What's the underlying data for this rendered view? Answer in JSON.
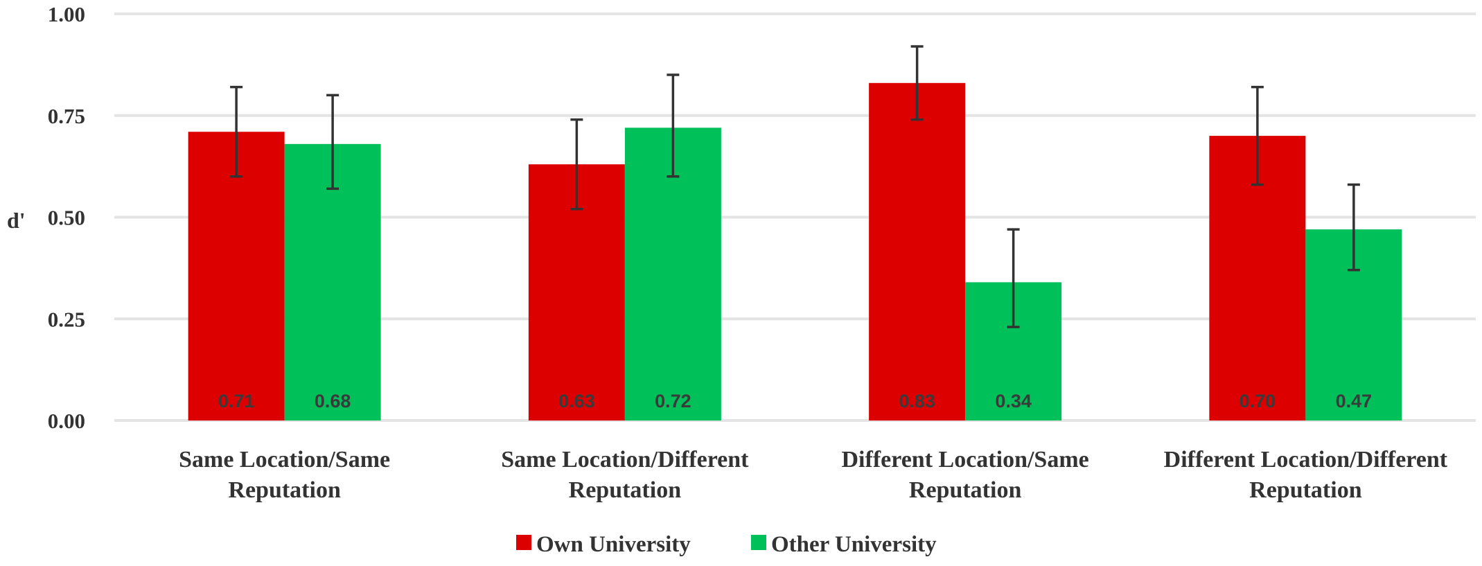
{
  "chart_data": {
    "type": "bar",
    "ylabel": "d'",
    "ylim": [
      0,
      1
    ],
    "yticks": [
      "0.00",
      "0.25",
      "0.50",
      "0.75",
      "1.00"
    ],
    "grid": true,
    "legend_position": "bottom",
    "categories": [
      [
        "Same Location/Same",
        "Reputation"
      ],
      [
        "Same Location/Different",
        "Reputation"
      ],
      [
        "Different Location/Same",
        "Reputation"
      ],
      [
        "Different Location/Different",
        "Reputation"
      ]
    ],
    "series": [
      {
        "name": "Own University",
        "color": "#dd0000",
        "values": [
          0.71,
          0.63,
          0.83,
          0.7
        ],
        "labels": [
          "0.71",
          "0.63",
          "0.83",
          "0.70"
        ],
        "err_low": [
          0.6,
          0.52,
          0.74,
          0.58
        ],
        "err_high": [
          0.82,
          0.74,
          0.92,
          0.82
        ]
      },
      {
        "name": "Other University",
        "color": "#00c05a",
        "values": [
          0.68,
          0.72,
          0.34,
          0.47
        ],
        "labels": [
          "0.68",
          "0.72",
          "0.34",
          "0.47"
        ],
        "err_low": [
          0.57,
          0.6,
          0.23,
          0.37
        ],
        "err_high": [
          0.8,
          0.85,
          0.47,
          0.58
        ]
      }
    ]
  }
}
